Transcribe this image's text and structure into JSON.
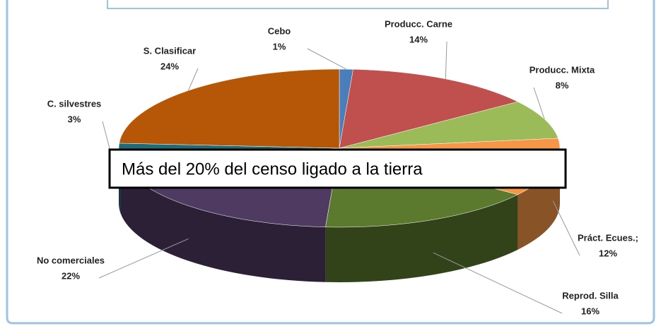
{
  "chart_data": {
    "type": "pie",
    "categories": [
      "Cebo",
      "Producc. Carne",
      "Producc. Mixta",
      "Práct. Ecues.;",
      "Reprod. Silla",
      "No comerciales",
      "C. silvestres",
      "S. Clasificar"
    ],
    "values": [
      1,
      14,
      8,
      12,
      16,
      22,
      3,
      24
    ],
    "value_labels": [
      "1%",
      "14%",
      "8%",
      "12%",
      "16%",
      "22%",
      "3%",
      "24%"
    ],
    "colors": [
      "#4a7ebb",
      "#c0504d",
      "#9bbb59",
      "#f79646",
      "#5b7a2e",
      "#4f3b62",
      "#1f6b7a",
      "#b65708"
    ],
    "annotation": "Más del 20% del censo ligado a la tierra"
  }
}
